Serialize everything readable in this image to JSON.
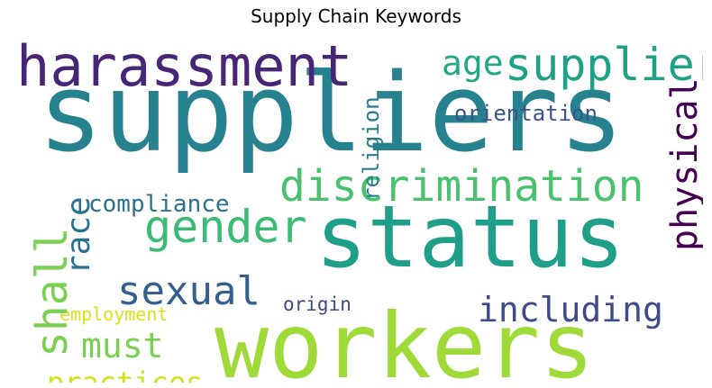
{
  "title": "Supply Chain Keywords",
  "words": [
    {
      "text": "suppliers",
      "color": "#26828e",
      "orientation": "horizontal"
    },
    {
      "text": "status",
      "color": "#1f9e89",
      "orientation": "horizontal"
    },
    {
      "text": "workers",
      "color": "#a0da39",
      "orientation": "horizontal"
    },
    {
      "text": "harassment",
      "color": "#482677",
      "orientation": "horizontal"
    },
    {
      "text": "discrimination",
      "color": "#4ac16d",
      "orientation": "horizontal"
    },
    {
      "text": "supplier",
      "color": "#1fa187",
      "orientation": "horizontal"
    },
    {
      "text": "gender",
      "color": "#3bbb75",
      "orientation": "horizontal"
    },
    {
      "text": "sexual",
      "color": "#355f8d",
      "orientation": "horizontal"
    },
    {
      "text": "including",
      "color": "#3e4a89",
      "orientation": "horizontal"
    },
    {
      "text": "must",
      "color": "#7ad151",
      "orientation": "horizontal"
    },
    {
      "text": "practices",
      "color": "#d2e21b",
      "orientation": "horizontal"
    },
    {
      "text": "age",
      "color": "#22a884",
      "orientation": "horizontal"
    },
    {
      "text": "orientation",
      "color": "#3b528b",
      "orientation": "horizontal"
    },
    {
      "text": "compliance",
      "color": "#2d708e",
      "orientation": "horizontal"
    },
    {
      "text": "employment",
      "color": "#d8e219",
      "orientation": "horizontal"
    },
    {
      "text": "origin",
      "color": "#3e4989",
      "orientation": "horizontal"
    },
    {
      "text": "shall",
      "color": "#7ad151",
      "orientation": "vertical"
    },
    {
      "text": "race",
      "color": "#2c728e",
      "orientation": "vertical"
    },
    {
      "text": "religion",
      "color": "#287c8e",
      "orientation": "vertical"
    },
    {
      "text": "physical",
      "color": "#440154",
      "orientation": "vertical"
    }
  ]
}
